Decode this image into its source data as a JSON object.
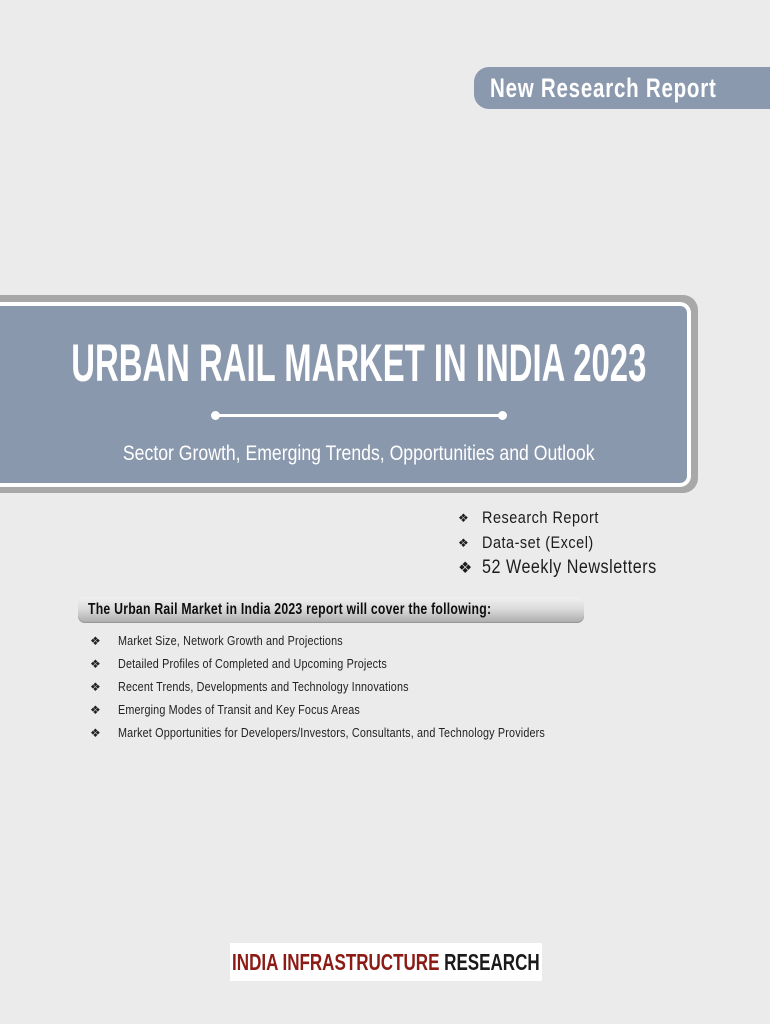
{
  "page": {
    "background_color": "#ECEBEB"
  },
  "top_banner": {
    "label": "New Research Report",
    "fill_color": "#8B99AE"
  },
  "hero": {
    "title": "URBAN RAIL MARKET IN INDIA 2023",
    "subtitle": "Sector Growth, Emerging Trends, Opportunities and Outlook",
    "fill_color": "#8A98AD",
    "frame_color": "#A8A8A8"
  },
  "deliverables": {
    "items": [
      {
        "bullet": "❖",
        "label": "Research Report",
        "size": "normal"
      },
      {
        "bullet": "❖",
        "label": "Data-set (Excel)",
        "size": "normal"
      },
      {
        "bullet": "❖",
        "label": "52 Weekly Newsletters",
        "size": "large"
      }
    ]
  },
  "coverage": {
    "heading": "The Urban Rail Market in India 2023 report will cover the following:",
    "bullet": "❖",
    "items": [
      "Market Size, Network Growth and Projections",
      "Detailed Profiles of Completed and Upcoming Projects",
      "Recent Trends, Developments and Technology Innovations",
      "Emerging Modes of Transit and Key Focus Areas",
      "Market Opportunities for Developers/Investors, Consultants, and Technology Providers"
    ]
  },
  "footer_logo": {
    "part1": "INDIA INFRASTRUCTURE",
    "part2": " RESEARCH",
    "part1_color": "#8C1B15",
    "part2_color": "#1A1A1A"
  }
}
